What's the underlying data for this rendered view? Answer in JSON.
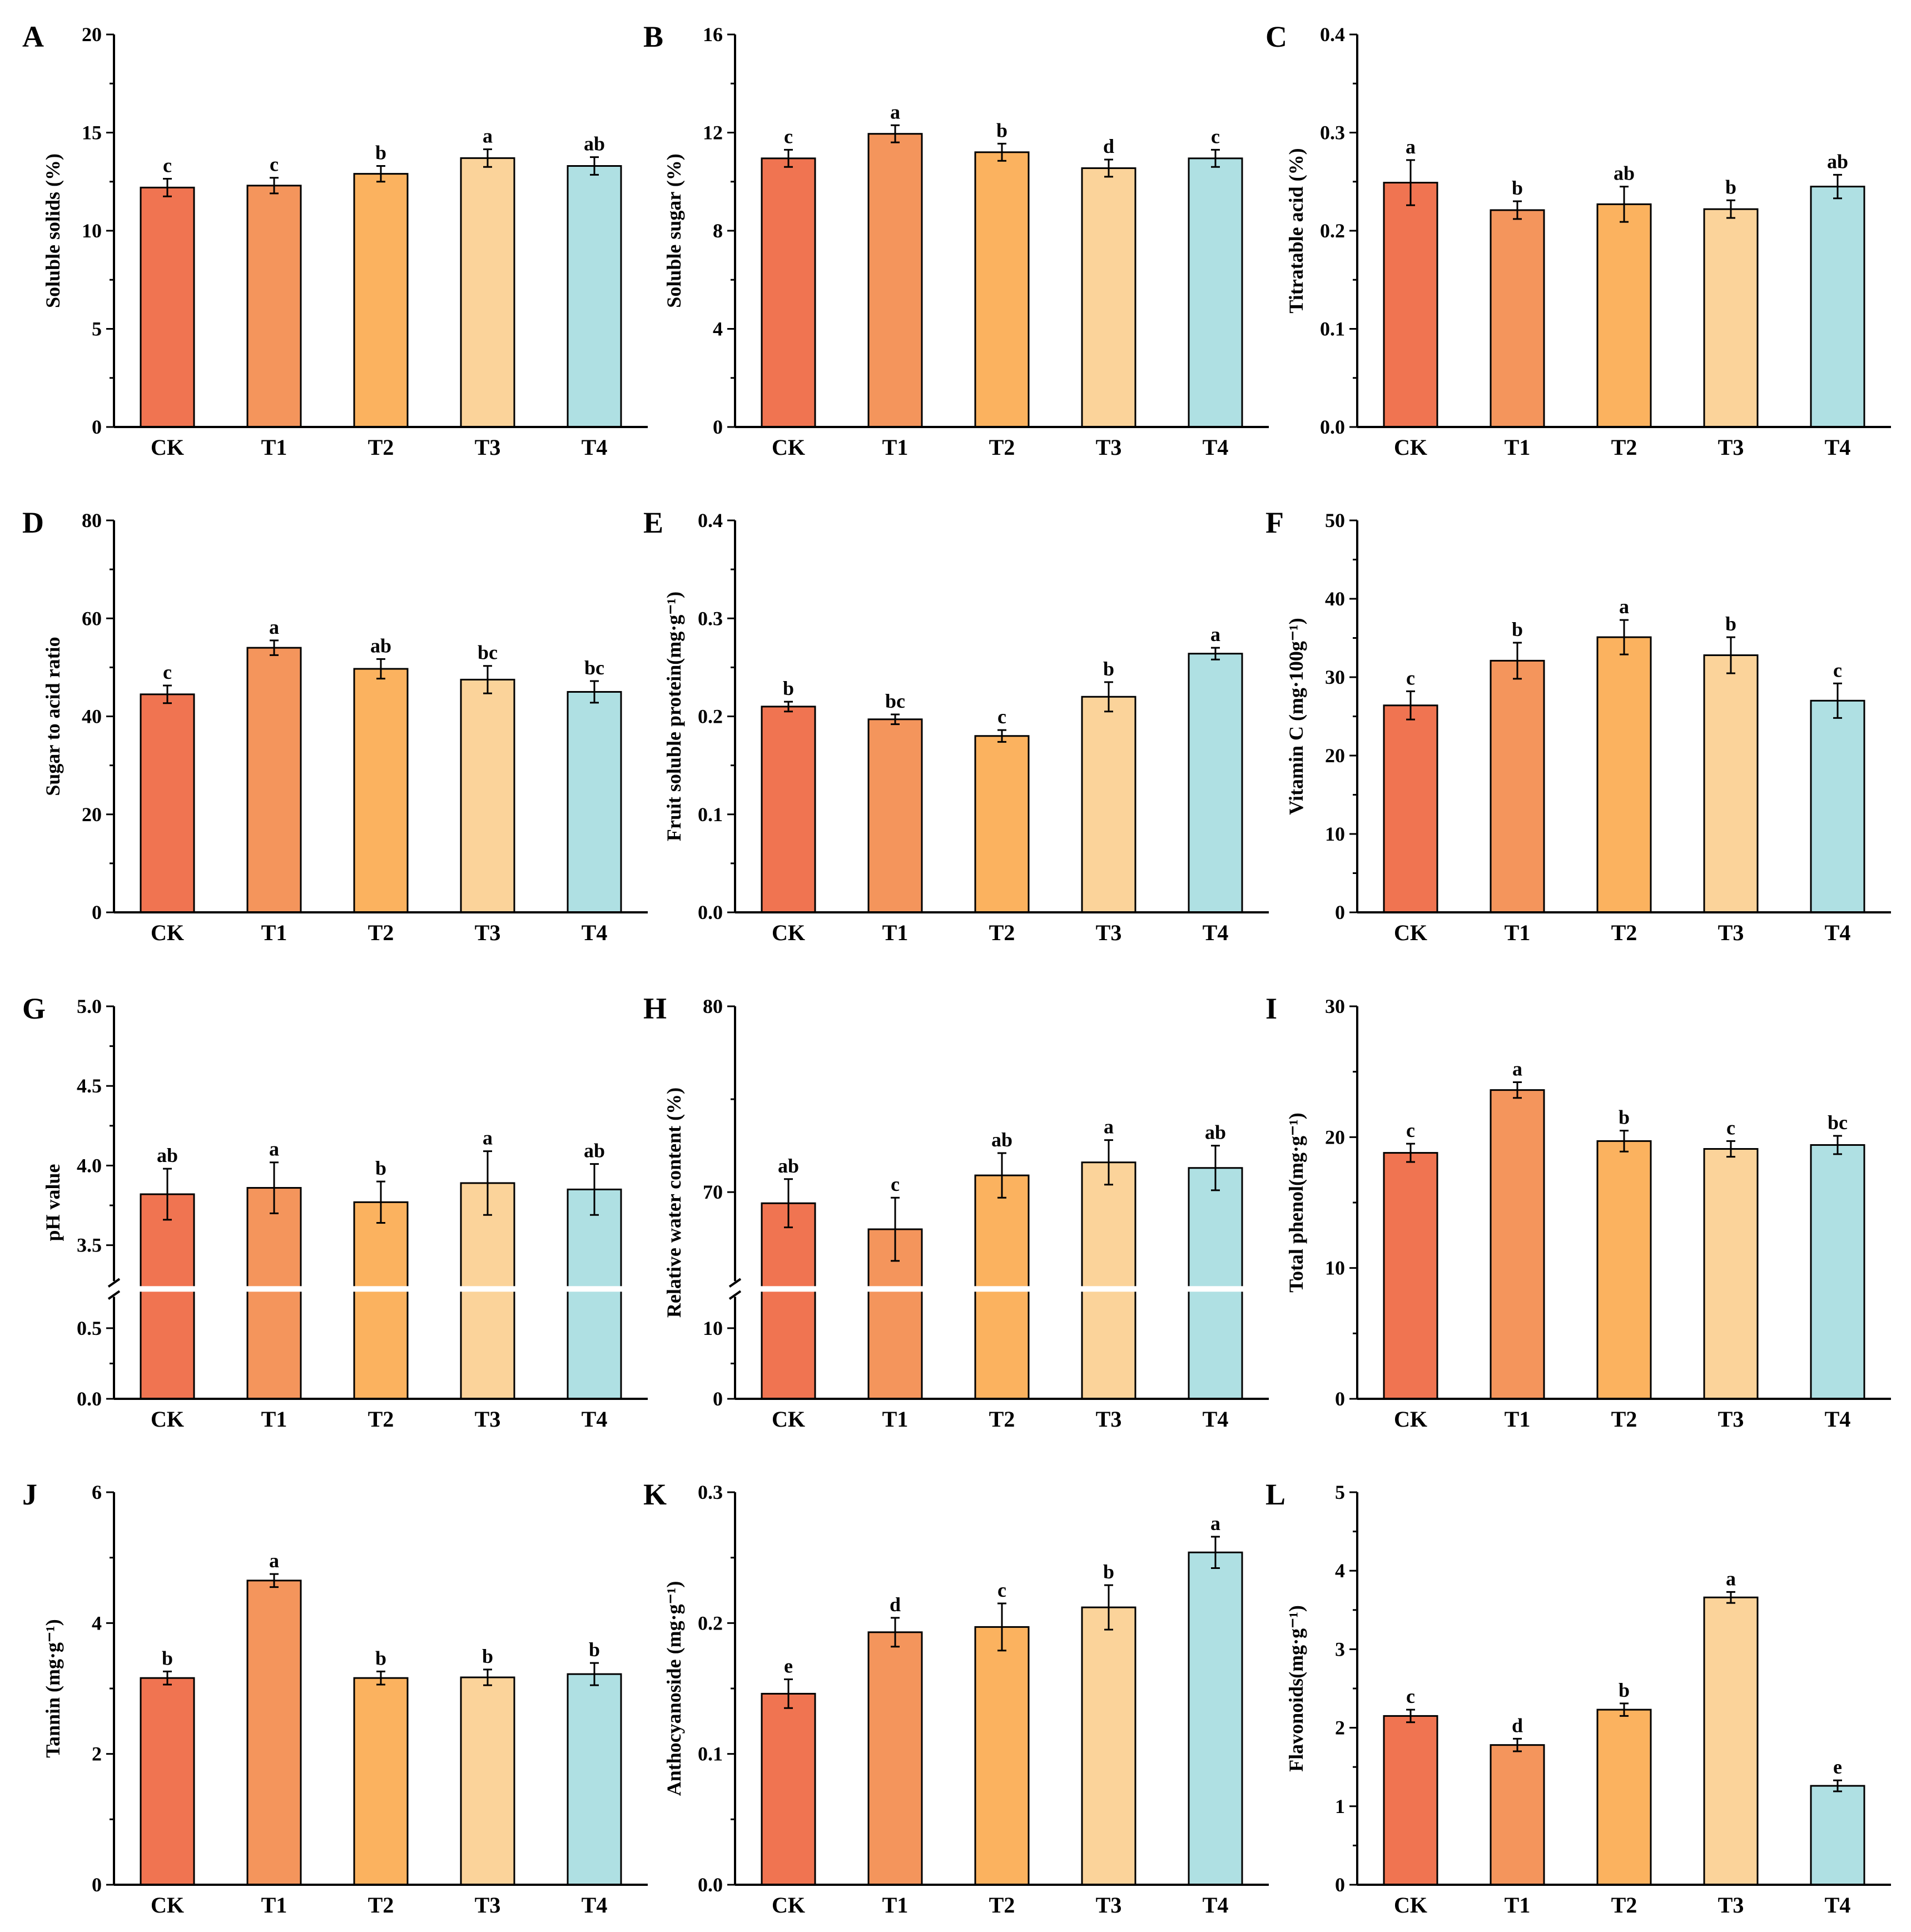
{
  "colors": [
    "#F07451",
    "#F4955C",
    "#FBB25F",
    "#FBD39A",
    "#AFE0E3"
  ],
  "chart_data": [
    {
      "type": "bar",
      "panel": "A",
      "ylabel": "Soluble solids (%)",
      "categories": [
        "CK",
        "T1",
        "T2",
        "T3",
        "T4"
      ],
      "values": [
        12.2,
        12.3,
        12.9,
        13.7,
        13.3
      ],
      "errors": [
        0.45,
        0.4,
        0.4,
        0.45,
        0.45
      ],
      "letters": [
        "c",
        "c",
        "b",
        "a",
        "ab"
      ],
      "ylim": [
        0,
        20
      ],
      "yticks": [
        {
          "v": 0,
          "t": "0"
        },
        {
          "v": 5,
          "t": "5"
        },
        {
          "v": 10,
          "t": "10"
        },
        {
          "v": 15,
          "t": "15"
        },
        {
          "v": 20,
          "t": "20"
        }
      ]
    },
    {
      "type": "bar",
      "panel": "B",
      "ylabel": "Soluble sugar (%)",
      "categories": [
        "CK",
        "T1",
        "T2",
        "T3",
        "T4"
      ],
      "values": [
        10.95,
        11.95,
        11.2,
        10.55,
        10.95
      ],
      "errors": [
        0.35,
        0.35,
        0.35,
        0.35,
        0.35
      ],
      "letters": [
        "c",
        "a",
        "b",
        "d",
        "c"
      ],
      "ylim": [
        0,
        16
      ],
      "yticks": [
        {
          "v": 0,
          "t": "0"
        },
        {
          "v": 4,
          "t": "4"
        },
        {
          "v": 8,
          "t": "8"
        },
        {
          "v": 12,
          "t": "12"
        },
        {
          "v": 16,
          "t": "16"
        }
      ]
    },
    {
      "type": "bar",
      "panel": "C",
      "ylabel": "Titratable acid (%)",
      "categories": [
        "CK",
        "T1",
        "T2",
        "T3",
        "T4"
      ],
      "values": [
        0.249,
        0.221,
        0.227,
        0.222,
        0.245
      ],
      "errors": [
        0.023,
        0.009,
        0.018,
        0.009,
        0.012
      ],
      "letters": [
        "a",
        "b",
        "ab",
        "b",
        "ab"
      ],
      "ylim": [
        0,
        0.4
      ],
      "yticks": [
        {
          "v": 0,
          "t": "0.0"
        },
        {
          "v": 0.1,
          "t": "0.1"
        },
        {
          "v": 0.2,
          "t": "0.2"
        },
        {
          "v": 0.3,
          "t": "0.3"
        },
        {
          "v": 0.4,
          "t": "0.4"
        }
      ]
    },
    {
      "type": "bar",
      "panel": "D",
      "ylabel": "Sugar to acid ratio",
      "categories": [
        "CK",
        "T1",
        "T2",
        "T3",
        "T4"
      ],
      "values": [
        44.5,
        54.0,
        49.7,
        47.5,
        45.0
      ],
      "errors": [
        1.8,
        1.5,
        2.0,
        2.8,
        2.2
      ],
      "letters": [
        "c",
        "a",
        "ab",
        "bc",
        "bc"
      ],
      "ylim": [
        0,
        80
      ],
      "yticks": [
        {
          "v": 0,
          "t": "0"
        },
        {
          "v": 20,
          "t": "20"
        },
        {
          "v": 40,
          "t": "40"
        },
        {
          "v": 60,
          "t": "60"
        },
        {
          "v": 80,
          "t": "80"
        }
      ]
    },
    {
      "type": "bar",
      "panel": "E",
      "ylabel": "Fruit soluble protein(mg·g⁻¹)",
      "categories": [
        "CK",
        "T1",
        "T2",
        "T3",
        "T4"
      ],
      "values": [
        0.21,
        0.197,
        0.18,
        0.22,
        0.264
      ],
      "errors": [
        0.005,
        0.005,
        0.006,
        0.015,
        0.006
      ],
      "letters": [
        "b",
        "bc",
        "c",
        "b",
        "a"
      ],
      "ylim": [
        0,
        0.4
      ],
      "yticks": [
        {
          "v": 0,
          "t": "0.0"
        },
        {
          "v": 0.1,
          "t": "0.1"
        },
        {
          "v": 0.2,
          "t": "0.2"
        },
        {
          "v": 0.3,
          "t": "0.3"
        },
        {
          "v": 0.4,
          "t": "0.4"
        }
      ]
    },
    {
      "type": "bar",
      "panel": "F",
      "ylabel": "Vitamin C (mg·100g⁻¹)",
      "categories": [
        "CK",
        "T1",
        "T2",
        "T3",
        "T4"
      ],
      "values": [
        26.4,
        32.1,
        35.1,
        32.8,
        27.0
      ],
      "errors": [
        1.8,
        2.3,
        2.2,
        2.3,
        2.2
      ],
      "letters": [
        "c",
        "b",
        "a",
        "b",
        "c"
      ],
      "ylim": [
        0,
        50
      ],
      "yticks": [
        {
          "v": 0,
          "t": "0"
        },
        {
          "v": 10,
          "t": "10"
        },
        {
          "v": 20,
          "t": "20"
        },
        {
          "v": 30,
          "t": "30"
        },
        {
          "v": 40,
          "t": "40"
        },
        {
          "v": 50,
          "t": "50"
        }
      ]
    },
    {
      "type": "bar",
      "panel": "G",
      "ylabel": "pH value",
      "categories": [
        "CK",
        "T1",
        "T2",
        "T3",
        "T4"
      ],
      "values": [
        3.82,
        3.86,
        3.77,
        3.89,
        3.85
      ],
      "errors": [
        0.16,
        0.16,
        0.13,
        0.2,
        0.16
      ],
      "letters": [
        "ab",
        "a",
        "b",
        "a",
        "ab"
      ],
      "ylim": [
        0,
        5.0
      ],
      "axis_break": {
        "lower": [
          0,
          0.75
        ],
        "upper": [
          3.25,
          5.0
        ]
      },
      "yticks": [
        {
          "v": 0,
          "t": "0.0"
        },
        {
          "v": 0.5,
          "t": "0.5"
        },
        {
          "v": 3.5,
          "t": "3.5"
        },
        {
          "v": 4.0,
          "t": "4.0"
        },
        {
          "v": 4.5,
          "t": "4.5"
        },
        {
          "v": 5.0,
          "t": "5.0"
        }
      ]
    },
    {
      "type": "bar",
      "panel": "H",
      "ylabel": "Relative water content (%)",
      "categories": [
        "CK",
        "T1",
        "T2",
        "T3",
        "T4"
      ],
      "values": [
        69.4,
        68.0,
        70.9,
        71.6,
        71.3
      ],
      "errors": [
        1.3,
        1.7,
        1.2,
        1.2,
        1.2
      ],
      "letters": [
        "ab",
        "c",
        "ab",
        "a",
        "ab"
      ],
      "ylim": [
        0,
        80
      ],
      "axis_break": {
        "lower": [
          0,
          15
        ],
        "upper": [
          65,
          80
        ]
      },
      "yticks": [
        {
          "v": 0,
          "t": "0"
        },
        {
          "v": 10,
          "t": "10"
        },
        {
          "v": 70,
          "t": "70"
        },
        {
          "v": 80,
          "t": "80"
        }
      ]
    },
    {
      "type": "bar",
      "panel": "I",
      "ylabel": "Total phenol(mg·g⁻¹)",
      "categories": [
        "CK",
        "T1",
        "T2",
        "T3",
        "T4"
      ],
      "values": [
        18.8,
        23.6,
        19.7,
        19.1,
        19.4
      ],
      "errors": [
        0.7,
        0.6,
        0.8,
        0.6,
        0.7
      ],
      "letters": [
        "c",
        "a",
        "b",
        "c",
        "bc"
      ],
      "ylim": [
        0,
        30
      ],
      "yticks": [
        {
          "v": 0,
          "t": "0"
        },
        {
          "v": 10,
          "t": "10"
        },
        {
          "v": 20,
          "t": "20"
        },
        {
          "v": 30,
          "t": "30"
        }
      ]
    },
    {
      "type": "bar",
      "panel": "J",
      "ylabel": "Tannin (mg·g⁻¹)",
      "categories": [
        "CK",
        "T1",
        "T2",
        "T3",
        "T4"
      ],
      "values": [
        3.16,
        4.65,
        3.16,
        3.17,
        3.22
      ],
      "errors": [
        0.1,
        0.1,
        0.1,
        0.12,
        0.17
      ],
      "letters": [
        "b",
        "a",
        "b",
        "b",
        "b"
      ],
      "ylim": [
        0,
        6
      ],
      "yticks": [
        {
          "v": 0,
          "t": "0"
        },
        {
          "v": 2,
          "t": "2"
        },
        {
          "v": 4,
          "t": "4"
        },
        {
          "v": 6,
          "t": "6"
        }
      ]
    },
    {
      "type": "bar",
      "panel": "K",
      "ylabel": "Anthocyanoside (mg·g⁻¹)",
      "categories": [
        "CK",
        "T1",
        "T2",
        "T3",
        "T4"
      ],
      "values": [
        0.146,
        0.193,
        0.197,
        0.212,
        0.254
      ],
      "errors": [
        0.011,
        0.011,
        0.018,
        0.017,
        0.012
      ],
      "letters": [
        "e",
        "d",
        "c",
        "b",
        "a"
      ],
      "ylim": [
        0,
        0.3
      ],
      "yticks": [
        {
          "v": 0,
          "t": "0.0"
        },
        {
          "v": 0.1,
          "t": "0.1"
        },
        {
          "v": 0.2,
          "t": "0.2"
        },
        {
          "v": 0.3,
          "t": "0.3"
        }
      ]
    },
    {
      "type": "bar",
      "panel": "L",
      "ylabel": "Flavonoids(mg·g⁻¹)",
      "categories": [
        "CK",
        "T1",
        "T2",
        "T3",
        "T4"
      ],
      "values": [
        2.15,
        1.78,
        2.23,
        3.66,
        1.26
      ],
      "errors": [
        0.08,
        0.08,
        0.08,
        0.07,
        0.07
      ],
      "letters": [
        "c",
        "d",
        "b",
        "a",
        "e"
      ],
      "ylim": [
        0,
        5
      ],
      "yticks": [
        {
          "v": 0,
          "t": "0"
        },
        {
          "v": 1,
          "t": "1"
        },
        {
          "v": 2,
          "t": "2"
        },
        {
          "v": 3,
          "t": "3"
        },
        {
          "v": 4,
          "t": "4"
        },
        {
          "v": 5,
          "t": "5"
        }
      ]
    }
  ]
}
